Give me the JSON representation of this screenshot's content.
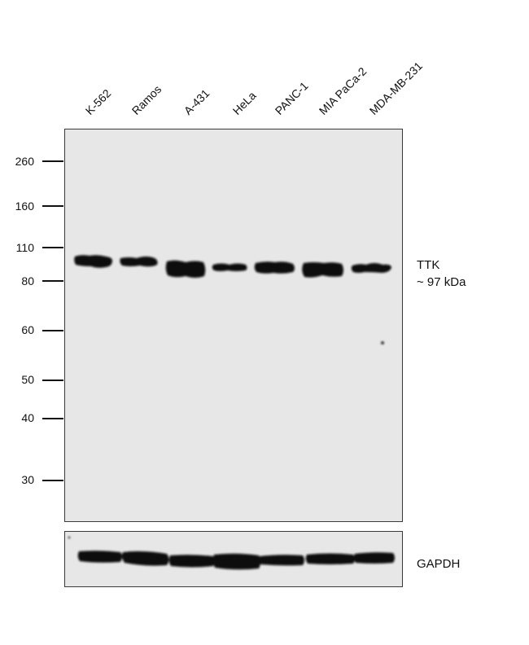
{
  "lanes": [
    "K-562",
    "Ramos",
    "A-431",
    "HeLa",
    "PANC-1",
    "MIA PaCa-2",
    "MDA-MB-231"
  ],
  "markers": [
    "260",
    "160",
    "110",
    "80",
    "60",
    "50",
    "40",
    "30"
  ],
  "target": {
    "name": "TTK",
    "size": "~ 97 kDa"
  },
  "loading_control": {
    "name": "GAPDH"
  },
  "colors": {
    "membrane": "#e7e7e7",
    "band": "#0b0b0b",
    "border": "#3a3a3a"
  }
}
